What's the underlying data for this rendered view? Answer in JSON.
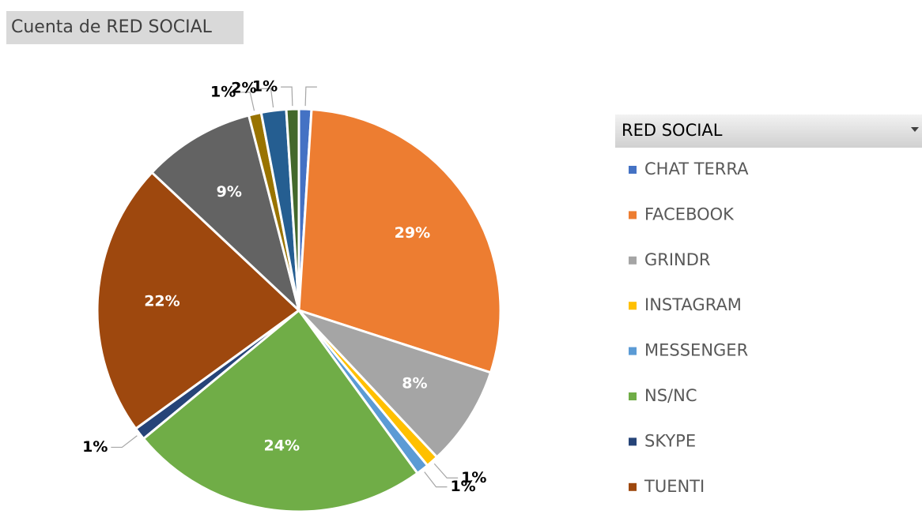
{
  "chart_data": {
    "type": "pie",
    "title": "Cuenta de RED SOCIAL",
    "legend_title": "RED SOCIAL",
    "categories": [
      "CHAT TERRA",
      "FACEBOOK",
      "GRINDR",
      "INSTAGRAM",
      "MESSENGER",
      "NS/NC",
      "SKYPE",
      "TUENTI",
      null,
      null,
      null,
      null
    ],
    "values": [
      1,
      29,
      8,
      1,
      1,
      24,
      1,
      22,
      9,
      1,
      2,
      1
    ],
    "value_labels": [
      null,
      "29%",
      "8%",
      "1%",
      "1%",
      "24%",
      "1%",
      "22%",
      "9%",
      "1%",
      "2%",
      "1%"
    ],
    "colors": [
      "#4472c4",
      "#ed7d31",
      "#a5a5a5",
      "#ffc000",
      "#5b9bd5",
      "#70ad47",
      "#264478",
      "#9e480e",
      "#636363",
      "#997300",
      "#255e91",
      "#43682b"
    ],
    "legend": "right"
  }
}
